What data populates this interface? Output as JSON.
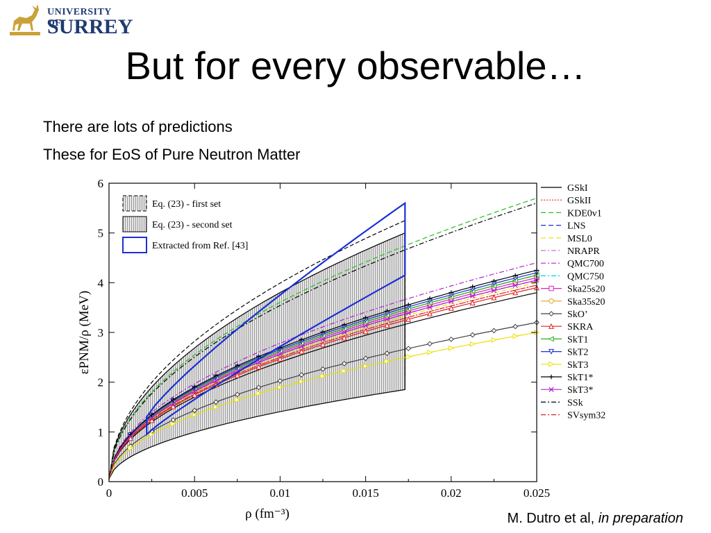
{
  "logo": {
    "line1": "UNIVERSITY OF",
    "line2": "SURREY"
  },
  "title": "But for every observable…",
  "bullets": [
    "There are lots of predictions",
    "These for EoS of Pure Neutron Matter"
  ],
  "citation": {
    "authors": "M. Dutro et al, ",
    "status": "in preparation"
  },
  "colors": {
    "band": "#c8c8c8",
    "extracted": "#1a2fd6"
  },
  "chart_data": {
    "type": "line",
    "xlabel": "ρ (fm⁻³)",
    "ylabel": "εPNM/ρ (MeV)",
    "xlim": [
      0,
      0.025
    ],
    "ylim": [
      0,
      6
    ],
    "xticks": [
      "0",
      "0.005",
      "0.01",
      "0.015",
      "0.02",
      "0.025"
    ],
    "yticks": [
      "0",
      "1",
      "2",
      "3",
      "4",
      "5",
      "6"
    ],
    "bands": [
      {
        "name": "Eq. (23) - first set",
        "x_end": 0.0173,
        "upper_end": 5.25,
        "lower_end": 2.1
      },
      {
        "name": "Eq. (23) - second set",
        "x_end": 0.0173,
        "upper_end": 5.0,
        "lower_end": 1.85
      }
    ],
    "extracted": {
      "name": "Extracted from Ref. [43]",
      "x": [
        0.0022,
        0.0173
      ],
      "upper": [
        1.3,
        5.6
      ],
      "lower": [
        0.95,
        4.15
      ]
    },
    "series": [
      {
        "name": "GSkI",
        "end": 3.8,
        "color": "#000000",
        "dash": "",
        "marker": ""
      },
      {
        "name": "GSkII",
        "end": 3.95,
        "color": "#e02020",
        "dash": "2,2",
        "marker": ""
      },
      {
        "name": "KDE0v1",
        "end": 5.7,
        "color": "#22c022",
        "dash": "7,4",
        "marker": ""
      },
      {
        "name": "LNS",
        "end": 4.05,
        "color": "#1a2fd6",
        "dash": "7,4",
        "marker": ""
      },
      {
        "name": "MSL0",
        "end": 4.0,
        "color": "#e8e000",
        "dash": "7,4",
        "marker": ""
      },
      {
        "name": "NRAPR",
        "end": 4.1,
        "color": "#d070d0",
        "dash": "7,3,2,3",
        "marker": ""
      },
      {
        "name": "QMC700",
        "end": 4.4,
        "color": "#b020d0",
        "dash": "7,3,2,3",
        "marker": ""
      },
      {
        "name": "QMC750",
        "end": 4.15,
        "color": "#00d0e0",
        "dash": "7,3,2,3",
        "marker": ""
      },
      {
        "name": "Ska25s20",
        "end": 4.1,
        "color": "#e020c0",
        "dash": "",
        "marker": "square"
      },
      {
        "name": "Ska35s20",
        "end": 4.15,
        "color": "#e0a020",
        "dash": "",
        "marker": "circle"
      },
      {
        "name": "SkO’",
        "end": 3.2,
        "color": "#404040",
        "dash": "",
        "marker": "diamond"
      },
      {
        "name": "SKRA",
        "end": 3.9,
        "color": "#e02020",
        "dash": "",
        "marker": "triangle"
      },
      {
        "name": "SkT1",
        "end": 4.15,
        "color": "#20b020",
        "dash": "",
        "marker": "triangle-left"
      },
      {
        "name": "SkT2",
        "end": 4.2,
        "color": "#1a2fd6",
        "dash": "",
        "marker": "triangle-down"
      },
      {
        "name": "SkT3",
        "end": 3.0,
        "color": "#e8e000",
        "dash": "",
        "marker": "triangle-right"
      },
      {
        "name": "SkT1*",
        "end": 4.25,
        "color": "#000000",
        "dash": "",
        "marker": "plus"
      },
      {
        "name": "SkT3*",
        "end": 4.05,
        "color": "#b020d0",
        "dash": "",
        "marker": "x"
      },
      {
        "name": "SSk",
        "end": 5.6,
        "color": "#000000",
        "dash": "7,3,2,3",
        "marker": ""
      },
      {
        "name": "SVsym32",
        "end": 3.95,
        "color": "#e02020",
        "dash": "7,3,2,3",
        "marker": ""
      }
    ]
  }
}
